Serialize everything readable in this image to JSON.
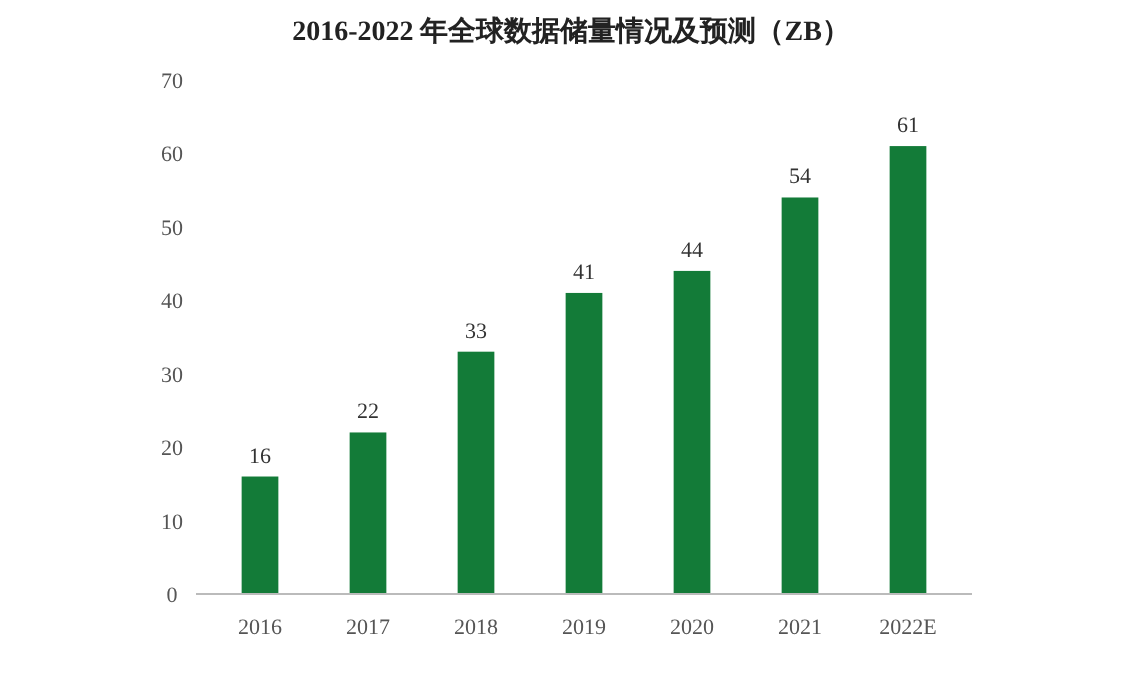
{
  "chart_data": {
    "type": "bar",
    "title": "2016-2022 年全球数据储量情况及预测（ZB）",
    "categories": [
      "2016",
      "2017",
      "2018",
      "2019",
      "2020",
      "2021",
      "2022E"
    ],
    "values": [
      16,
      22,
      33,
      41,
      44,
      54,
      61
    ],
    "color": "#137b38",
    "ylim": [
      0,
      70
    ],
    "yticks": [
      0,
      10,
      20,
      30,
      40,
      50,
      60,
      70
    ],
    "data_labels": true,
    "grid": false
  }
}
